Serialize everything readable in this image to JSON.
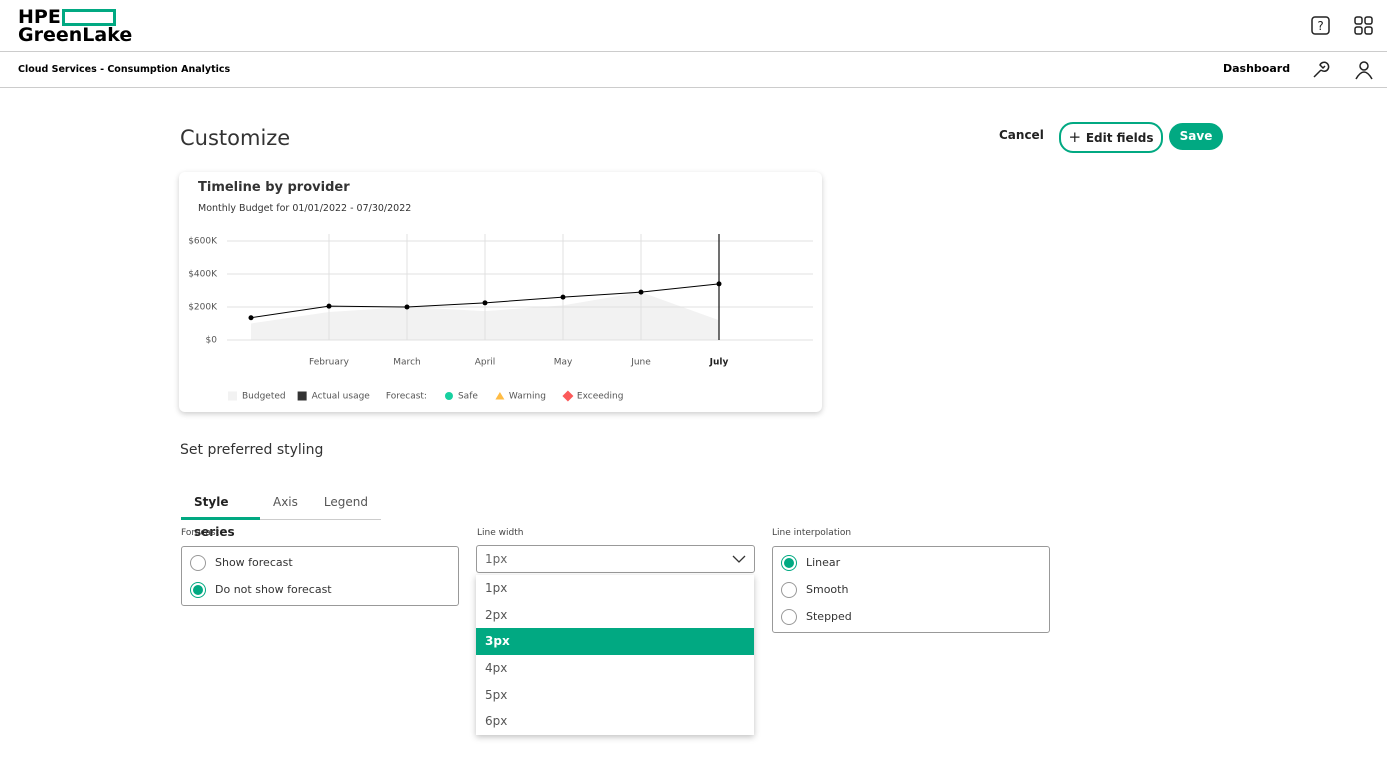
{
  "header": {
    "brand_top": "HPE",
    "brand_bottom": "GreenLake",
    "breadcrumb": "Cloud Services - Consumption Analytics",
    "nav_link": "Dashboard"
  },
  "page": {
    "title": "Customize",
    "cancel": "Cancel",
    "edit_fields": "Edit fields",
    "save": "Save"
  },
  "chart_data": {
    "type": "line",
    "title": "Timeline by provider",
    "subtitle": "Monthly Budget for 01/01/2022 - 07/30/2022",
    "categories": [
      null,
      "February",
      "March",
      "April",
      "May",
      "June",
      "July"
    ],
    "highlight_category": 6,
    "series": [
      {
        "name": "Budgeted",
        "kind": "area",
        "color": "#f2f2f2",
        "values": [
          100000,
          170000,
          200000,
          175000,
          210000,
          290000,
          120000
        ]
      },
      {
        "name": "Actual usage",
        "kind": "line",
        "color": "#333333",
        "values": [
          135000,
          205000,
          200000,
          225000,
          260000,
          290000,
          340000
        ]
      }
    ],
    "ylim": [
      0,
      600000
    ],
    "yticks": [
      {
        "value": 0,
        "label": "$0"
      },
      {
        "value": 200000,
        "label": "$200K"
      },
      {
        "value": 400000,
        "label": "$400K"
      },
      {
        "value": 600000,
        "label": "$600K"
      }
    ],
    "grid": true,
    "forecast_legend": {
      "label": "Forecast:",
      "items": [
        {
          "name": "Safe",
          "color": "#17d0a0",
          "shape": "circle"
        },
        {
          "name": "Warning",
          "color": "#ffbc44",
          "shape": "triangle"
        },
        {
          "name": "Exceeding",
          "color": "#fc5a5a",
          "shape": "diamond"
        }
      ]
    }
  },
  "styling": {
    "title": "Set preferred styling",
    "tabs": [
      "Style series",
      "Axis",
      "Legend"
    ],
    "active_tab": 0,
    "forecast": {
      "label": "Forecast",
      "options": [
        "Show forecast",
        "Do not show forecast"
      ],
      "selected": 1
    },
    "line_width": {
      "label": "Line width",
      "value": "1px",
      "options": [
        "1px",
        "2px",
        "3px",
        "4px",
        "5px",
        "6px"
      ],
      "highlighted": 2
    },
    "interpolation": {
      "label": "Line interpolation",
      "options": [
        "Linear",
        "Smooth",
        "Stepped"
      ],
      "selected": 0
    }
  }
}
